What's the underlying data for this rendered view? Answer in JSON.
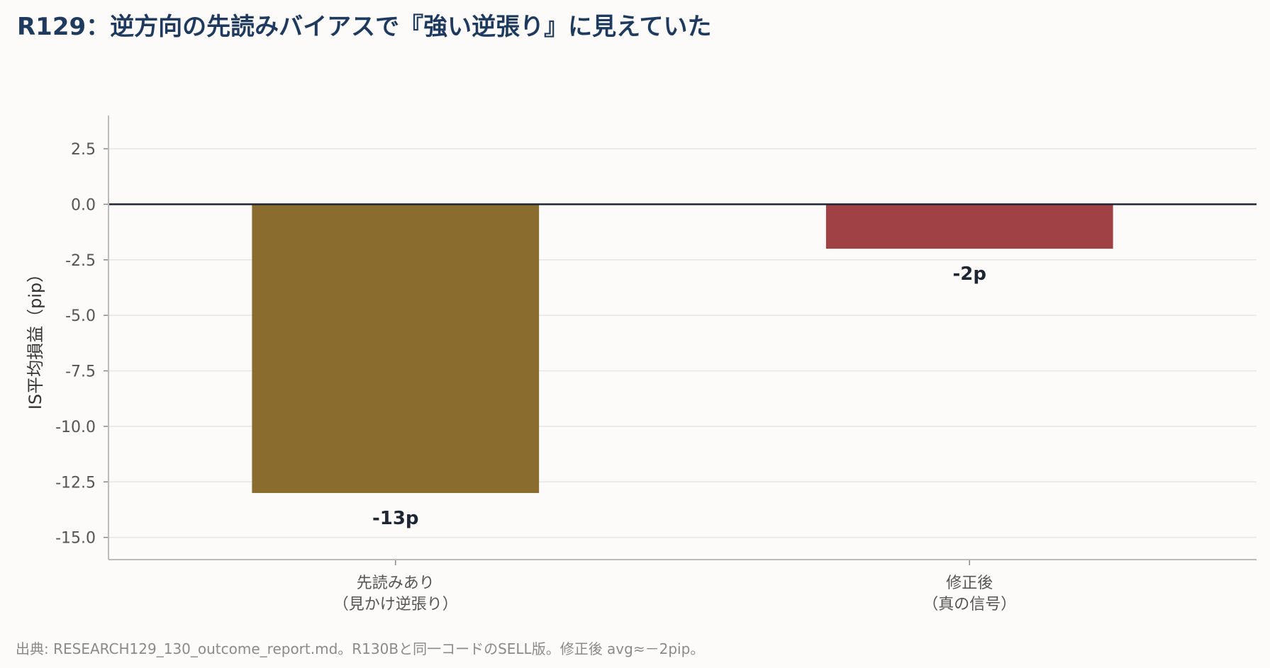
{
  "chart_data": {
    "type": "bar",
    "title": "R129：逆方向の先読みバイアスで『強い逆張り』に見えていた",
    "ylabel": "IS平均損益（pip）",
    "xlabel": "",
    "categories": [
      [
        "先読みあり",
        "（見かけ逆張り）"
      ],
      [
        "修正後",
        "（真の信号）"
      ]
    ],
    "values": [
      -13,
      -2
    ],
    "data_labels": [
      "-13p",
      "-2p"
    ],
    "colors": [
      "#8a6c2f",
      "#a04145"
    ],
    "ylim": [
      -16,
      4
    ],
    "yticks": [
      2.5,
      0.0,
      -2.5,
      -5.0,
      -7.5,
      -10.0,
      -12.5,
      -15.0
    ],
    "ytick_labels": [
      "2.5",
      "0.0",
      "-2.5",
      "-5.0",
      "-7.5",
      "-10.0",
      "-12.5",
      "-15.0"
    ],
    "grid": true,
    "zero_line": true
  },
  "source_note": "出典: RESEARCH129_130_outcome_report.md。R130Bと同一コードのSELL版。修正後 avg≈－2pip。"
}
